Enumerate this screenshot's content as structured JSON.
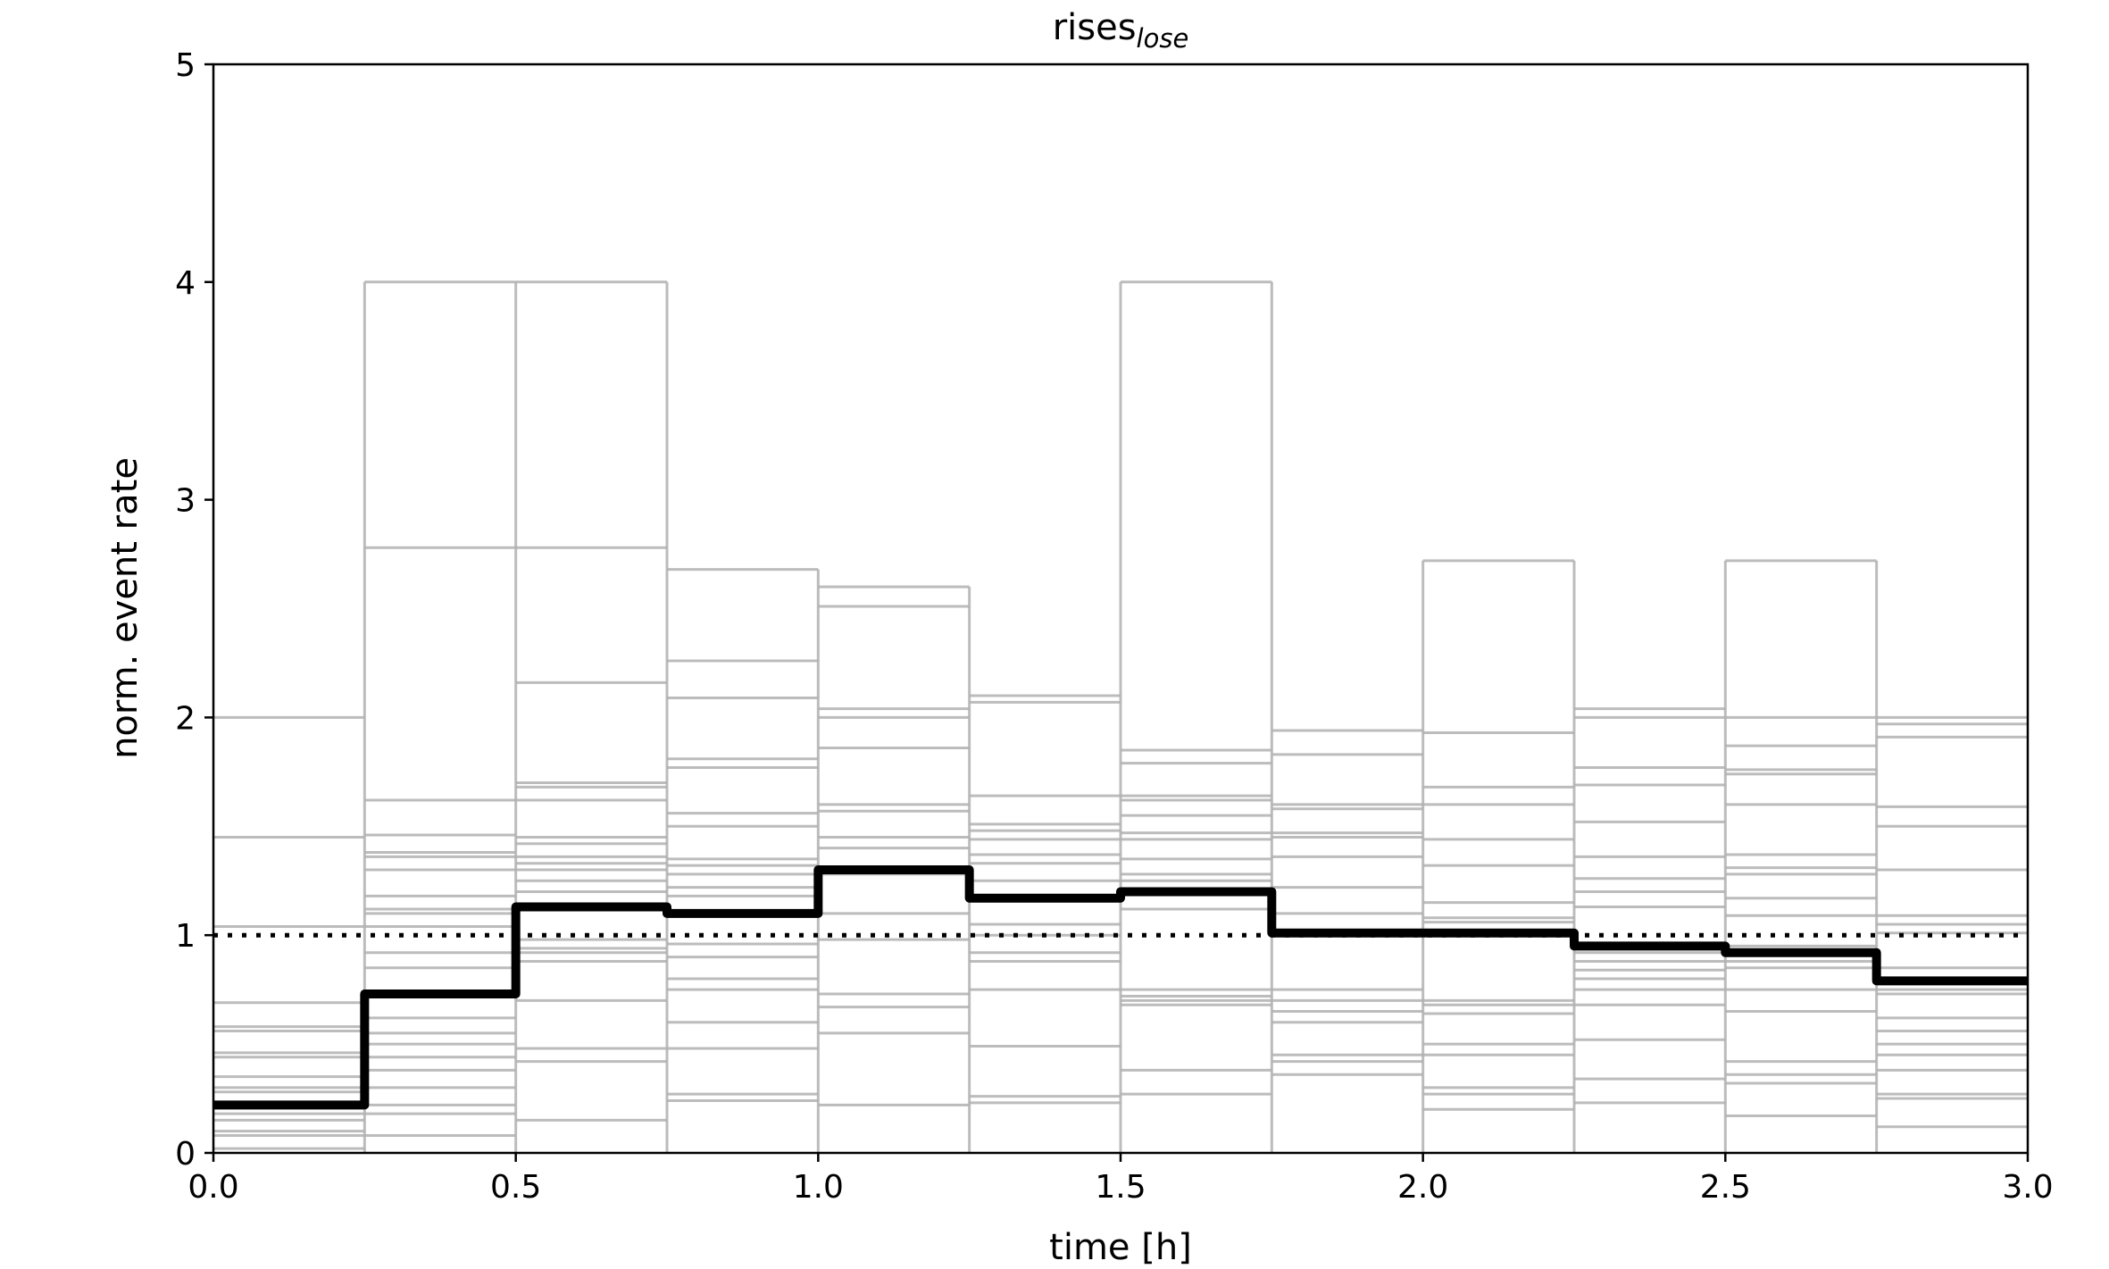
{
  "chart_data": {
    "type": "line",
    "style": "step histogram",
    "title": "rises",
    "title_subscript": "lose",
    "xlabel": "time [h]",
    "ylabel": "norm. event rate",
    "xlim": [
      0,
      3.0
    ],
    "ylim": [
      0,
      5
    ],
    "xticks": [
      "0.0",
      "0.5",
      "1.0",
      "1.5",
      "2.0",
      "2.5",
      "3.0"
    ],
    "yticks": [
      "0",
      "1",
      "2",
      "3",
      "4",
      "5"
    ],
    "grid": false,
    "bin_edges": [
      0,
      0.25,
      0.5,
      0.75,
      1.0,
      1.25,
      1.5,
      1.75,
      2.0,
      2.25,
      2.5,
      2.75,
      3.0
    ],
    "mean": {
      "color": "#000000",
      "values": [
        0.22,
        0.73,
        1.13,
        1.1,
        1.3,
        1.17,
        1.2,
        1.01,
        1.01,
        0.95,
        0.92,
        0.79
      ]
    },
    "reference_line": {
      "y": 1,
      "style": "dotted",
      "color": "#000000"
    },
    "individual_levels": {
      "color": "#b0b0b0",
      "bins": [
        [
          2.0,
          1.45,
          1.04,
          0.69,
          0.58,
          0.56,
          0.46,
          0.44,
          0.35,
          0.3,
          0.28,
          0.22,
          0.18,
          0.15,
          0.1,
          0.08,
          0.02
        ],
        [
          4.0,
          2.78,
          1.62,
          1.46,
          1.38,
          1.36,
          1.3,
          1.18,
          1.12,
          1.1,
          1.04,
          0.92,
          0.85,
          0.62,
          0.55,
          0.5,
          0.44,
          0.38,
          0.3,
          0.22,
          0.18,
          0.08
        ],
        [
          4.0,
          2.78,
          2.16,
          1.7,
          1.68,
          1.62,
          1.45,
          1.42,
          1.36,
          1.33,
          1.3,
          1.25,
          1.2,
          0.98,
          0.94,
          0.92,
          0.88,
          0.7,
          0.48,
          0.42,
          0.15
        ],
        [
          2.68,
          2.26,
          2.09,
          1.81,
          1.77,
          1.56,
          1.5,
          1.35,
          1.32,
          1.28,
          1.22,
          1.18,
          0.96,
          0.9,
          0.8,
          0.75,
          0.6,
          0.48,
          0.27,
          0.24
        ],
        [
          2.6,
          2.51,
          2.04,
          2.0,
          1.86,
          1.6,
          1.57,
          1.45,
          1.4,
          1.28,
          1.1,
          0.98,
          0.73,
          0.67,
          0.55,
          0.22
        ],
        [
          2.1,
          2.07,
          1.64,
          1.51,
          1.48,
          1.44,
          1.37,
          1.33,
          1.25,
          1.05,
          1.0,
          0.92,
          0.88,
          0.75,
          0.49,
          0.26,
          0.23
        ],
        [
          4.0,
          1.85,
          1.79,
          1.64,
          1.62,
          1.55,
          1.47,
          1.44,
          1.35,
          1.28,
          1.25,
          1.12,
          0.75,
          0.72,
          0.7,
          0.68,
          0.38,
          0.27
        ],
        [
          1.94,
          1.83,
          1.6,
          1.58,
          1.47,
          1.45,
          1.36,
          1.22,
          1.1,
          1.02,
          0.75,
          0.7,
          0.65,
          0.6,
          0.45,
          0.42,
          0.36
        ],
        [
          2.72,
          1.93,
          1.68,
          1.6,
          1.44,
          1.32,
          1.15,
          1.08,
          1.06,
          0.7,
          0.68,
          0.64,
          0.5,
          0.45,
          0.3,
          0.27,
          0.2
        ],
        [
          2.04,
          2.0,
          1.77,
          1.69,
          1.52,
          1.36,
          1.26,
          1.2,
          1.13,
          0.92,
          0.88,
          0.84,
          0.8,
          0.75,
          0.68,
          0.52,
          0.34,
          0.23
        ],
        [
          2.72,
          2.0,
          1.87,
          1.76,
          1.74,
          1.6,
          1.37,
          1.31,
          1.28,
          1.17,
          1.09,
          0.95,
          0.88,
          0.85,
          0.75,
          0.65,
          0.42,
          0.36,
          0.32,
          0.17
        ],
        [
          2.0,
          1.97,
          1.91,
          1.59,
          1.5,
          1.3,
          1.09,
          1.05,
          1.01,
          0.85,
          0.75,
          0.73,
          0.62,
          0.56,
          0.5,
          0.45,
          0.38,
          0.27,
          0.25,
          0.12
        ]
      ]
    }
  }
}
